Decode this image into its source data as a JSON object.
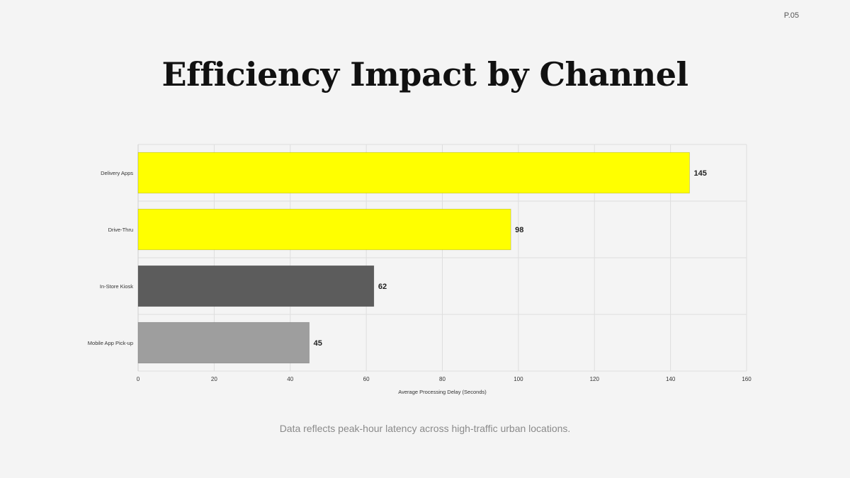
{
  "page_number": "P.05",
  "title": "Efficiency Impact by Channel",
  "footnote": "Data reflects peak-hour latency across high-traffic urban locations.",
  "chart_data": {
    "type": "bar",
    "orientation": "horizontal",
    "categories": [
      "Delivery Apps",
      "Drive-Thru",
      "In-Store Kiosk",
      "Mobile App Pick-up"
    ],
    "values": [
      145,
      98,
      62,
      45
    ],
    "bar_colors": [
      "#ffff00",
      "#ffff00",
      "#5c5c5c",
      "#9e9e9e"
    ],
    "xlabel": "Average Processing Delay (Seconds)",
    "ylabel": "",
    "xlim": [
      0,
      160
    ],
    "xticks": [
      0,
      20,
      40,
      60,
      80,
      100,
      120,
      140,
      160
    ],
    "grid": true,
    "data_labels": true
  }
}
